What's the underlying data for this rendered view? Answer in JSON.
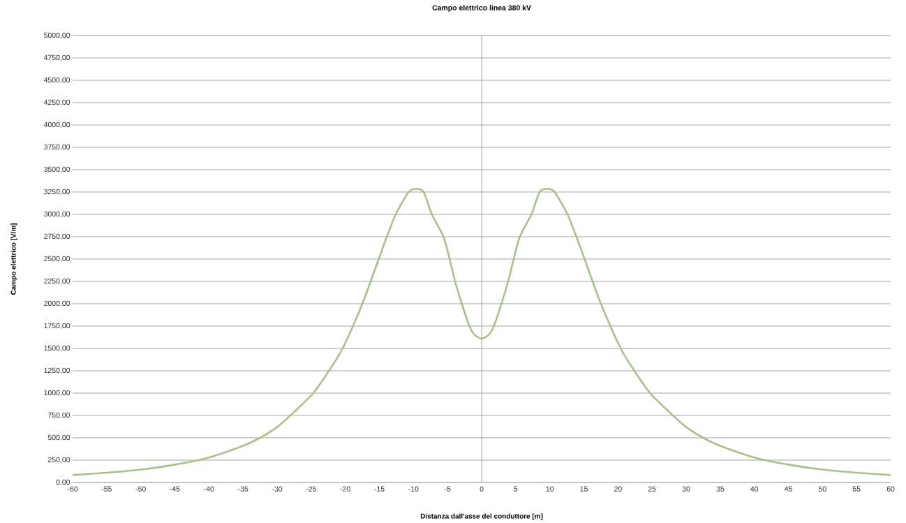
{
  "chart_data": {
    "type": "line",
    "title": "Campo elettrico linea 380 kV",
    "xlabel": "Distanza dall'asse  del conduttore  [m]",
    "ylabel": "Campo elettrico [V/m]",
    "x": [
      -60,
      -55,
      -50,
      -45,
      -40,
      -35,
      -32.5,
      -30,
      -27.5,
      -24.7,
      -22.4,
      -20.4,
      -17.5,
      -15.1,
      -13.9,
      -12.6,
      -10.7,
      -9.6,
      -8.5,
      -7.3,
      -5.6,
      -4.7,
      -3.9,
      -2.9,
      -1.8,
      -1,
      0,
      1,
      1.8,
      2.9,
      3.9,
      4.7,
      5.6,
      7.3,
      8.5,
      9.6,
      10.7,
      12.6,
      13.9,
      15.1,
      17.5,
      20.4,
      22.4,
      24.7,
      27.5,
      30,
      32.5,
      35,
      40,
      45,
      50,
      55,
      60
    ],
    "series": [
      {
        "color": "#a9c08a",
        "values": [
          85,
          110,
          145,
          200,
          280,
          410,
          500,
          620,
          790,
          1000,
          1250,
          1500,
          2000,
          2500,
          2750,
          3000,
          3250,
          3285,
          3250,
          3000,
          2750,
          2500,
          2250,
          2000,
          1750,
          1650,
          1610,
          1650,
          1750,
          2000,
          2250,
          2500,
          2750,
          3000,
          3250,
          3285,
          3250,
          3000,
          2750,
          2500,
          2000,
          1500,
          1250,
          1000,
          790,
          620,
          500,
          410,
          280,
          200,
          145,
          110,
          85
        ]
      }
    ],
    "xlim": [
      -60,
      60
    ],
    "ylim": [
      0,
      5000
    ],
    "xticks": [
      -60,
      -55,
      -50,
      -45,
      -40,
      -35,
      -30,
      -25,
      -20,
      -15,
      -10,
      -5,
      0,
      5,
      10,
      15,
      20,
      25,
      30,
      35,
      40,
      45,
      50,
      55,
      60
    ],
    "yticks": [
      {
        "value": 0,
        "label": "0,00"
      },
      {
        "value": 250,
        "label": "250,00"
      },
      {
        "value": 500,
        "label": "500,00"
      },
      {
        "value": 750,
        "label": "750,00"
      },
      {
        "value": 1000,
        "label": "1000,00"
      },
      {
        "value": 1250,
        "label": "1250,00"
      },
      {
        "value": 1500,
        "label": "1500,00"
      },
      {
        "value": 1750,
        "label": "1750,00"
      },
      {
        "value": 2000,
        "label": "2000,00"
      },
      {
        "value": 2250,
        "label": "2250,00"
      },
      {
        "value": 2500,
        "label": "2500,00"
      },
      {
        "value": 2750,
        "label": "2750,00"
      },
      {
        "value": 3000,
        "label": "3000,00"
      },
      {
        "value": 3250,
        "label": "3250,00"
      },
      {
        "value": 3500,
        "label": "3500,00"
      },
      {
        "value": 3750,
        "label": "3750,00"
      },
      {
        "value": 4000,
        "label": "4000,00"
      },
      {
        "value": 4250,
        "label": "4250,00"
      },
      {
        "value": 4500,
        "label": "4500,00"
      },
      {
        "value": 4750,
        "label": "4750,00"
      },
      {
        "value": 5000,
        "label": "5000,00"
      }
    ],
    "grid": "y",
    "marker": "none",
    "line_style": "solid",
    "ref_lines": [
      {
        "axis": "x",
        "value": 0,
        "color": "#868686"
      }
    ]
  }
}
